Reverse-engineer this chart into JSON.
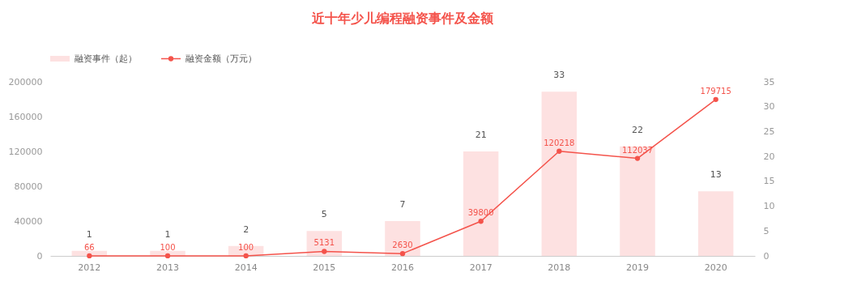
{
  "chart_data": {
    "type": "bar",
    "title": "近十年少儿编程融资事件及金额",
    "categories": [
      "2012",
      "2013",
      "2014",
      "2015",
      "2016",
      "2017",
      "2018",
      "2019",
      "2020"
    ],
    "series": [
      {
        "name": "融资事件（起）",
        "axis": "y2",
        "color": "#fde1e1",
        "values": [
          1,
          1,
          2,
          5,
          7,
          21,
          33,
          22,
          13
        ]
      },
      {
        "name": "融资金额（万元）",
        "type": "line",
        "color": "#f4534b",
        "marker": "circle",
        "values": [
          66,
          100,
          100,
          5131,
          2630,
          39800,
          120218,
          112037,
          179715
        ]
      }
    ],
    "ylim": [
      0,
      200000
    ],
    "yticks": [
      0,
      40000,
      80000,
      120000,
      160000,
      200000
    ],
    "y2lim": [
      0,
      35
    ],
    "y2ticks": [
      0,
      5,
      10,
      15,
      20,
      25,
      30,
      35
    ],
    "grid": false,
    "data_labels": true,
    "legend": "top left"
  }
}
